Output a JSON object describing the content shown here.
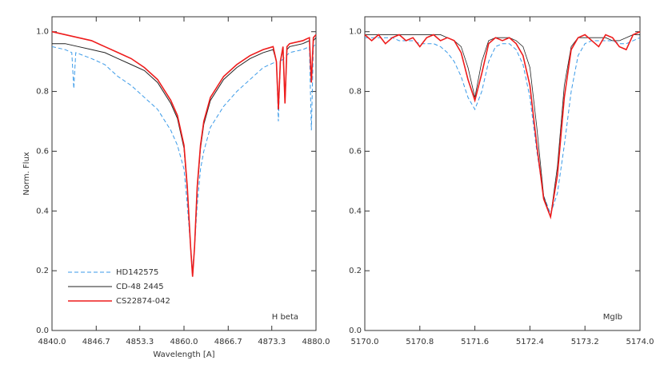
{
  "chart_data": [
    {
      "type": "line",
      "ylabel": "Norm. Flux",
      "xlabel": "Wavelength [A]",
      "annotation": "H beta",
      "legend": "lower left",
      "xlim": [
        4840,
        4880
      ],
      "xticks": [
        {
          "value": 4840,
          "label": "4840.0"
        },
        4846.7,
        4853.3,
        {
          "value": 4860,
          "label": "4860.0"
        },
        4866.7,
        4873.3,
        {
          "value": 4880,
          "label": "4880.0"
        }
      ],
      "ylim": [
        0,
        1.05
      ],
      "yticks": [
        {
          "value": 0,
          "label": "0.0"
        },
        0.2,
        0.4,
        0.6,
        0.8,
        {
          "value": 1,
          "label": "1.0"
        }
      ],
      "series": [
        {
          "name": "HD142575",
          "color": "#3a9ae8",
          "line_style": "dashed",
          "line_width": 1,
          "x": [
            4840,
            4842,
            4843,
            4843.3,
            4843.6,
            4846,
            4848,
            4850,
            4852,
            4854,
            4856,
            4858,
            4859,
            4860,
            4860.5,
            4861,
            4861.3,
            4861.6,
            4862,
            4862.5,
            4863,
            4864,
            4866,
            4868,
            4870,
            4872,
            4874,
            4874.3,
            4874.6,
            4876,
            4878,
            4879,
            4879.3,
            4879.6,
            4880
          ],
          "values": [
            0.95,
            0.94,
            0.93,
            0.81,
            0.93,
            0.91,
            0.89,
            0.85,
            0.82,
            0.78,
            0.74,
            0.67,
            0.62,
            0.54,
            0.42,
            0.28,
            0.2,
            0.28,
            0.42,
            0.54,
            0.6,
            0.68,
            0.75,
            0.8,
            0.84,
            0.88,
            0.9,
            0.7,
            0.9,
            0.93,
            0.94,
            0.95,
            0.67,
            0.95,
            0.96
          ]
        },
        {
          "name": "CD-48 2445",
          "color": "#222222",
          "line_style": "solid",
          "line_width": 1,
          "x": [
            4840,
            4842,
            4844,
            4846,
            4848,
            4850,
            4852,
            4854,
            4856,
            4858,
            4859,
            4860,
            4860.5,
            4861,
            4861.3,
            4861.6,
            4862,
            4862.5,
            4863,
            4864,
            4866,
            4868,
            4870,
            4872,
            4873.5,
            4874,
            4874.3,
            4874.6,
            4875,
            4875.3,
            4875.6,
            4876,
            4878,
            4879,
            4879.3,
            4879.6,
            4880
          ],
          "values": [
            0.96,
            0.96,
            0.95,
            0.94,
            0.93,
            0.91,
            0.89,
            0.87,
            0.83,
            0.76,
            0.71,
            0.61,
            0.47,
            0.28,
            0.18,
            0.28,
            0.47,
            0.61,
            0.69,
            0.77,
            0.84,
            0.88,
            0.91,
            0.93,
            0.94,
            0.9,
            0.74,
            0.9,
            0.94,
            0.76,
            0.94,
            0.95,
            0.96,
            0.97,
            0.83,
            0.97,
            0.98
          ]
        },
        {
          "name": "CS22874-042",
          "color": "#ee1c1c",
          "line_style": "solid",
          "line_width": 1.6,
          "x": [
            4840,
            4842,
            4844,
            4846,
            4848,
            4850,
            4852,
            4854,
            4856,
            4858,
            4859,
            4860,
            4860.5,
            4861,
            4861.3,
            4861.6,
            4862,
            4862.5,
            4863,
            4864,
            4866,
            4868,
            4870,
            4872,
            4873.5,
            4874,
            4874.3,
            4874.6,
            4875,
            4875.3,
            4875.6,
            4876,
            4878,
            4879,
            4879.3,
            4879.6,
            4880
          ],
          "values": [
            1.0,
            0.99,
            0.98,
            0.97,
            0.95,
            0.93,
            0.91,
            0.88,
            0.84,
            0.77,
            0.72,
            0.62,
            0.48,
            0.28,
            0.18,
            0.28,
            0.48,
            0.62,
            0.7,
            0.78,
            0.85,
            0.89,
            0.92,
            0.94,
            0.95,
            0.9,
            0.74,
            0.9,
            0.95,
            0.76,
            0.95,
            0.96,
            0.97,
            0.98,
            0.83,
            0.98,
            0.99
          ]
        }
      ]
    },
    {
      "type": "line",
      "annotation": "MgIb",
      "xlim": [
        5170,
        5174
      ],
      "xticks": [
        {
          "value": 5170,
          "label": "5170.0"
        },
        5170.8,
        5171.6,
        5172.4,
        5173.2,
        {
          "value": 5174,
          "label": "5174.0"
        }
      ],
      "ylim": [
        0,
        1.05
      ],
      "yticks": [
        {
          "value": 0,
          "label": "0.0"
        },
        0.2,
        0.4,
        0.6,
        0.8,
        {
          "value": 1,
          "label": "1.0"
        }
      ],
      "x": [
        5170,
        5170.1,
        5170.2,
        5170.3,
        5170.4,
        5170.5,
        5170.6,
        5170.7,
        5170.8,
        5170.9,
        5171,
        5171.1,
        5171.2,
        5171.3,
        5171.4,
        5171.5,
        5171.6,
        5171.7,
        5171.8,
        5171.9,
        5172,
        5172.1,
        5172.2,
        5172.3,
        5172.4,
        5172.5,
        5172.6,
        5172.7,
        5172.8,
        5172.9,
        5173,
        5173.1,
        5173.2,
        5173.3,
        5173.4,
        5173.5,
        5173.6,
        5173.7,
        5173.8,
        5173.9,
        5174
      ],
      "series": [
        {
          "color": "#3a9ae8",
          "line_style": "dashed",
          "line_width": 1,
          "values": [
            0.98,
            0.98,
            0.98,
            0.98,
            0.98,
            0.97,
            0.97,
            0.97,
            0.96,
            0.96,
            0.96,
            0.95,
            0.93,
            0.9,
            0.85,
            0.78,
            0.74,
            0.8,
            0.9,
            0.95,
            0.96,
            0.96,
            0.94,
            0.89,
            0.78,
            0.6,
            0.45,
            0.39,
            0.46,
            0.62,
            0.8,
            0.92,
            0.96,
            0.97,
            0.97,
            0.97,
            0.97,
            0.96,
            0.96,
            0.97,
            0.98
          ]
        },
        {
          "color": "#222222",
          "line_style": "solid",
          "line_width": 0.8,
          "values": [
            0.99,
            0.99,
            0.99,
            0.99,
            0.99,
            0.99,
            0.99,
            0.99,
            0.99,
            0.99,
            0.99,
            0.99,
            0.98,
            0.97,
            0.95,
            0.88,
            0.78,
            0.9,
            0.97,
            0.98,
            0.98,
            0.98,
            0.97,
            0.95,
            0.88,
            0.68,
            0.45,
            0.38,
            0.55,
            0.82,
            0.95,
            0.98,
            0.98,
            0.98,
            0.98,
            0.98,
            0.97,
            0.97,
            0.98,
            0.99,
            0.99
          ]
        },
        {
          "color": "#ee1c1c",
          "line_style": "solid",
          "line_width": 1.6,
          "values": [
            0.99,
            0.97,
            0.99,
            0.96,
            0.98,
            0.99,
            0.97,
            0.98,
            0.95,
            0.98,
            0.99,
            0.97,
            0.98,
            0.97,
            0.93,
            0.84,
            0.77,
            0.86,
            0.96,
            0.98,
            0.97,
            0.98,
            0.96,
            0.92,
            0.82,
            0.62,
            0.44,
            0.38,
            0.52,
            0.78,
            0.94,
            0.98,
            0.99,
            0.97,
            0.95,
            0.99,
            0.98,
            0.95,
            0.94,
            0.99,
            1.0
          ]
        }
      ]
    }
  ]
}
